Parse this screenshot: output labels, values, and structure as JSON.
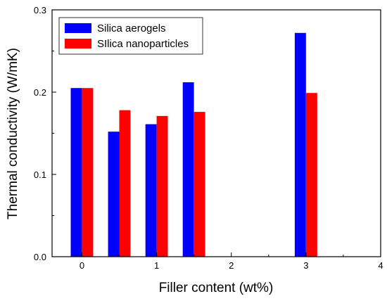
{
  "chart_data": {
    "type": "bar",
    "xlabel": "Filler content (wt%)",
    "ylabel": "Thermal conductivity (W/mK)",
    "xlim": [
      -0.4,
      4
    ],
    "ylim": [
      0,
      0.3
    ],
    "x_ticks": [
      0,
      1,
      2,
      3,
      4
    ],
    "x_tick_labels": [
      "0",
      "1",
      "2",
      "3",
      "4"
    ],
    "y_ticks": [
      0.0,
      0.1,
      0.2,
      0.3
    ],
    "y_tick_labels": [
      "0.0",
      "0.1",
      "0.2",
      "0.3"
    ],
    "x": [
      0,
      0.5,
      1,
      1.5,
      3
    ],
    "bar_width": 0.15,
    "grid": false,
    "legend_position": "top-left",
    "series": [
      {
        "name": "Silica aerogels",
        "color": "#0000ff",
        "values": [
          0.205,
          0.152,
          0.161,
          0.212,
          0.272
        ]
      },
      {
        "name": "SIlica nanoparticles",
        "color": "#ff0000",
        "values": [
          0.205,
          0.178,
          0.171,
          0.176,
          0.199
        ]
      }
    ]
  }
}
